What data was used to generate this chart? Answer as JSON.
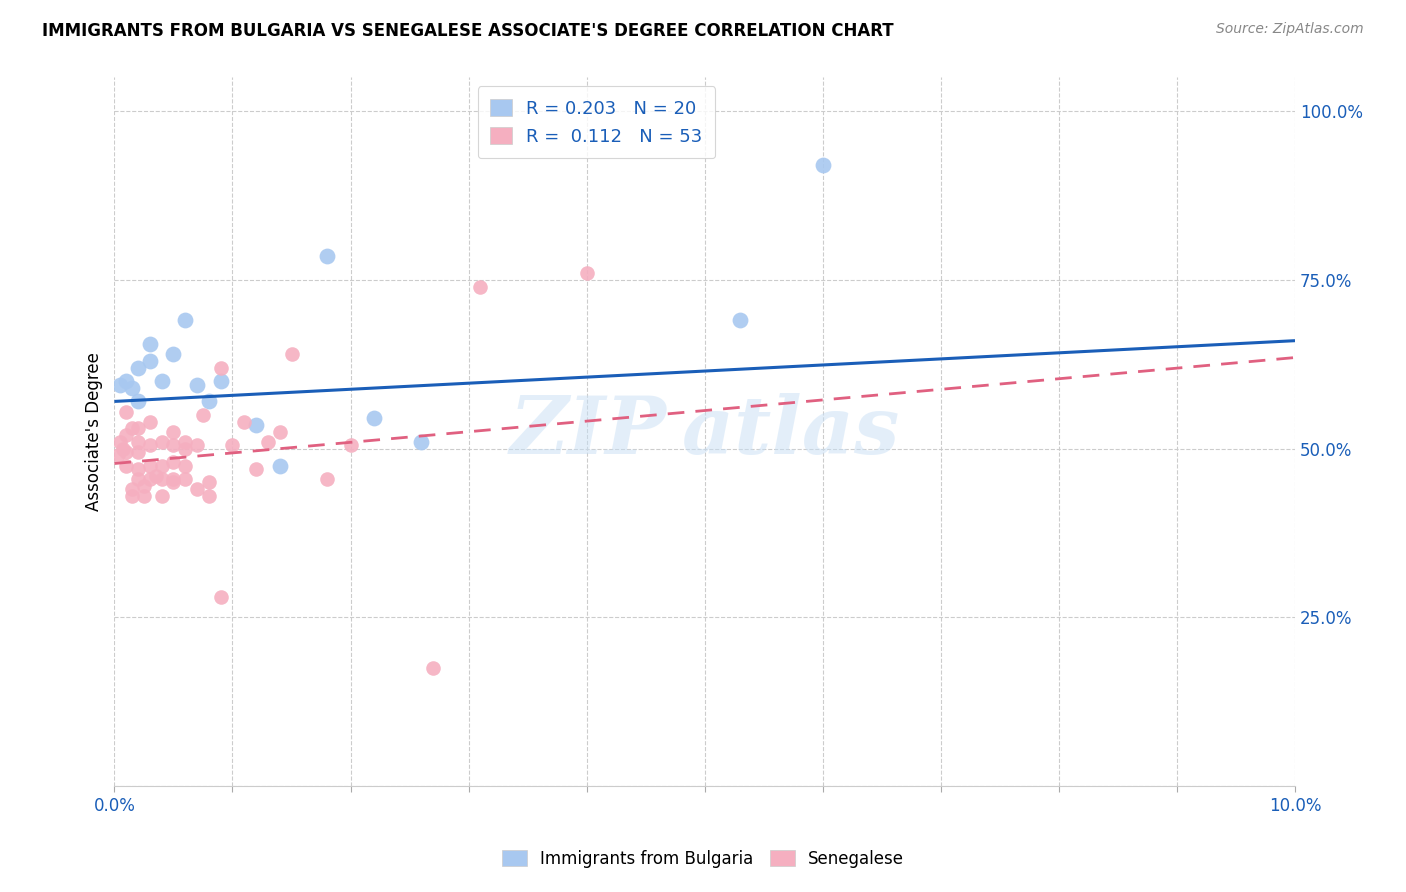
{
  "title": "IMMIGRANTS FROM BULGARIA VS SENEGALESE ASSOCIATE'S DEGREE CORRELATION CHART",
  "source": "Source: ZipAtlas.com",
  "ylabel": "Associate's Degree",
  "legend_blue_R": "0.203",
  "legend_blue_N": "20",
  "legend_pink_R": "0.112",
  "legend_pink_N": "53",
  "blue_color": "#a8c8f0",
  "pink_color": "#f5afc0",
  "blue_line_color": "#1a5eb8",
  "pink_line_color": "#e06080",
  "blue_points_x": [
    0.0005,
    0.001,
    0.0015,
    0.002,
    0.002,
    0.003,
    0.003,
    0.004,
    0.005,
    0.006,
    0.007,
    0.008,
    0.009,
    0.012,
    0.014,
    0.018,
    0.022,
    0.026,
    0.053,
    0.06
  ],
  "blue_points_y": [
    0.595,
    0.6,
    0.59,
    0.62,
    0.57,
    0.63,
    0.655,
    0.6,
    0.64,
    0.69,
    0.595,
    0.57,
    0.6,
    0.535,
    0.475,
    0.785,
    0.545,
    0.51,
    0.69,
    0.92
  ],
  "pink_points_x": [
    0.0003,
    0.0005,
    0.0007,
    0.001,
    0.001,
    0.001,
    0.001,
    0.0015,
    0.0015,
    0.0015,
    0.002,
    0.002,
    0.002,
    0.002,
    0.002,
    0.0025,
    0.0025,
    0.003,
    0.003,
    0.003,
    0.003,
    0.0035,
    0.004,
    0.004,
    0.004,
    0.004,
    0.005,
    0.005,
    0.005,
    0.005,
    0.005,
    0.006,
    0.006,
    0.006,
    0.006,
    0.007,
    0.007,
    0.0075,
    0.008,
    0.008,
    0.009,
    0.009,
    0.01,
    0.011,
    0.012,
    0.013,
    0.014,
    0.015,
    0.018,
    0.02,
    0.027,
    0.031,
    0.04
  ],
  "pink_points_y": [
    0.49,
    0.51,
    0.5,
    0.475,
    0.495,
    0.52,
    0.555,
    0.43,
    0.44,
    0.53,
    0.455,
    0.47,
    0.495,
    0.51,
    0.53,
    0.43,
    0.445,
    0.455,
    0.475,
    0.505,
    0.54,
    0.46,
    0.43,
    0.455,
    0.475,
    0.51,
    0.45,
    0.455,
    0.48,
    0.505,
    0.525,
    0.455,
    0.475,
    0.5,
    0.51,
    0.44,
    0.505,
    0.55,
    0.43,
    0.45,
    0.62,
    0.28,
    0.505,
    0.54,
    0.47,
    0.51,
    0.525,
    0.64,
    0.455,
    0.505,
    0.175,
    0.74,
    0.76
  ],
  "xlim": [
    0.0,
    0.1
  ],
  "ylim": [
    0.0,
    1.05
  ],
  "blue_line_x0": 0.0,
  "blue_line_x1": 0.1,
  "blue_line_y0": 0.57,
  "blue_line_y1": 0.66,
  "pink_line_x0": 0.0,
  "pink_line_x1": 0.1,
  "pink_line_y0": 0.478,
  "pink_line_y1": 0.635
}
